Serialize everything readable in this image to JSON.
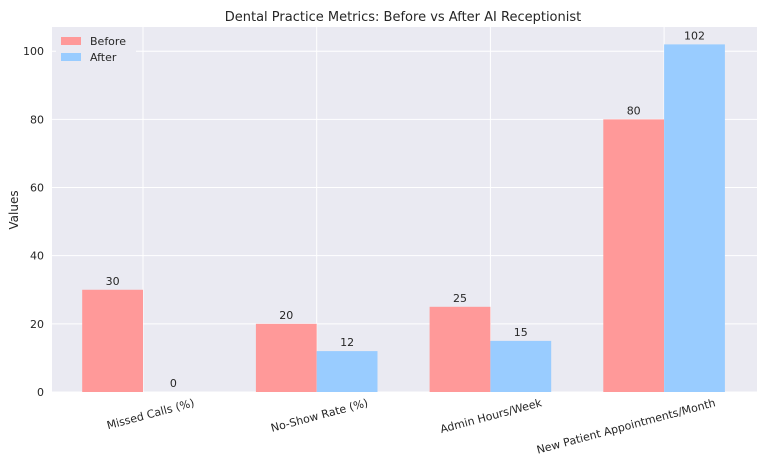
{
  "chart_data": {
    "type": "bar",
    "title": "Dental Practice Metrics: Before vs After AI Receptionist",
    "xlabel": "",
    "ylabel": "Values",
    "categories": [
      "Missed Calls (%)",
      "No-Show Rate (%)",
      "Admin Hours/Week",
      "New Patient Appointments/Month"
    ],
    "series": [
      {
        "name": "Before",
        "values": [
          30,
          20,
          25,
          80
        ],
        "color": "#ff9999"
      },
      {
        "name": "After",
        "values": [
          0,
          12,
          15,
          102
        ],
        "color": "#99ccff"
      }
    ],
    "ylim": [
      0,
      107.1
    ],
    "yticks": [
      0,
      20,
      40,
      60,
      80,
      100
    ],
    "grid": true,
    "legend_position": "top-left",
    "plot_background": "#eaeaf2",
    "grid_color": "#ffffff"
  }
}
